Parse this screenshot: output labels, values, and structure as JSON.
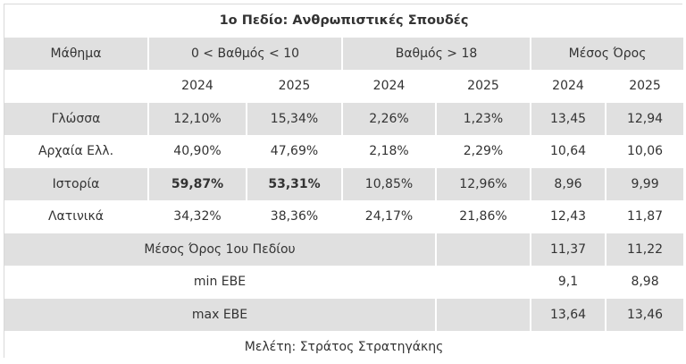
{
  "title": "1ο Πεδίο: Ανθρωπιστικές Σπουδές",
  "headers": {
    "subject": "Μάθημα",
    "range_low": "0 < Βαθμός < 10",
    "range_high": "Βαθμός > 18",
    "average": "Μέσος Όρος"
  },
  "years": [
    "2024",
    "2025",
    "2024",
    "2025",
    "2024",
    "2025"
  ],
  "rows": [
    {
      "subject": "Γλώσσα",
      "values": [
        "12,10%",
        "15,34%",
        "2,26%",
        "1,23%",
        "13,45",
        "12,94"
      ]
    },
    {
      "subject": "Αρχαία Ελλ.",
      "values": [
        "40,90%",
        "47,69%",
        "2,18%",
        "2,29%",
        "10,64",
        "10,06"
      ]
    },
    {
      "subject": "Ιστορία",
      "values": [
        "59,87%",
        "53,31%",
        "10,85%",
        "12,96%",
        "8,96",
        "9,99"
      ]
    },
    {
      "subject": "Λατινικά",
      "values": [
        "34,32%",
        "38,36%",
        "24,17%",
        "21,86%",
        "12,43",
        "11,87"
      ]
    }
  ],
  "summary": [
    {
      "label": "Μέσος Όρος 1ου Πεδίου",
      "values": [
        "11,37",
        "11,22"
      ]
    },
    {
      "label": "min ΕΒΕ",
      "values": [
        "9,1",
        "8,98"
      ]
    },
    {
      "label": "max ΕΒΕ",
      "values": [
        "13,64",
        "13,46"
      ]
    }
  ],
  "footer": "Μελέτη: Στράτος Στρατηγάκης",
  "colors": {
    "shaded_row": "#e0e0e0",
    "text": "#333333",
    "border": "#d9d9d9"
  }
}
